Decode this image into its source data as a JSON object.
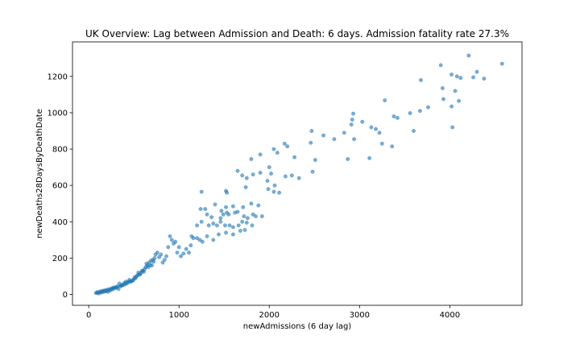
{
  "chart_data": {
    "type": "scatter",
    "title": "UK Overview:  Lag between Admission and Death: 6 days.  Admission fatality rate 27.3%",
    "xlabel": "newAdmissions (6 day lag)",
    "ylabel": "newDeaths28DaysByDeathDate",
    "xlim": [
      -180,
      4800
    ],
    "ylim": [
      -60,
      1390
    ],
    "xticks": [
      0,
      1000,
      2000,
      3000,
      4000
    ],
    "yticks": [
      0,
      200,
      400,
      600,
      800,
      1000,
      1200
    ],
    "grid": false,
    "marker_color": "#1f77b4",
    "points": [
      [
        4210,
        1315
      ],
      [
        4580,
        1270
      ],
      [
        3900,
        1262
      ],
      [
        3680,
        1180
      ],
      [
        4120,
        1192
      ],
      [
        4020,
        1210
      ],
      [
        4080,
        1200
      ],
      [
        4300,
        1225
      ],
      [
        4260,
        1195
      ],
      [
        4380,
        1188
      ],
      [
        3920,
        1135
      ],
      [
        4060,
        1120
      ],
      [
        3930,
        1075
      ],
      [
        4100,
        1065
      ],
      [
        3280,
        1068
      ],
      [
        4020,
        1035
      ],
      [
        3760,
        1030
      ],
      [
        3670,
        1010
      ],
      [
        3560,
        998
      ],
      [
        3380,
        980
      ],
      [
        3420,
        972
      ],
      [
        2930,
        995
      ],
      [
        2920,
        962
      ],
      [
        2910,
        935
      ],
      [
        3030,
        950
      ],
      [
        3180,
        910
      ],
      [
        3220,
        890
      ],
      [
        3130,
        920
      ],
      [
        4030,
        920
      ],
      [
        3600,
        900
      ],
      [
        2830,
        890
      ],
      [
        2470,
        900
      ],
      [
        2600,
        875
      ],
      [
        2940,
        855
      ],
      [
        3250,
        830
      ],
      [
        3360,
        815
      ],
      [
        2720,
        855
      ],
      [
        2460,
        835
      ],
      [
        2170,
        830
      ],
      [
        2050,
        800
      ],
      [
        2090,
        780
      ],
      [
        2200,
        815
      ],
      [
        1900,
        770
      ],
      [
        2280,
        755
      ],
      [
        2510,
        740
      ],
      [
        2870,
        745
      ],
      [
        3110,
        750
      ],
      [
        1800,
        745
      ],
      [
        1650,
        680
      ],
      [
        2000,
        700
      ],
      [
        1700,
        655
      ],
      [
        1820,
        660
      ],
      [
        1900,
        670
      ],
      [
        2020,
        665
      ],
      [
        2180,
        650
      ],
      [
        2250,
        655
      ],
      [
        2330,
        640
      ],
      [
        2480,
        675
      ],
      [
        1750,
        640
      ],
      [
        1740,
        590
      ],
      [
        1980,
        625
      ],
      [
        2060,
        600
      ],
      [
        1520,
        570
      ],
      [
        1530,
        560
      ],
      [
        1250,
        565
      ],
      [
        1400,
        495
      ],
      [
        1520,
        480
      ],
      [
        1600,
        485
      ],
      [
        1710,
        480
      ],
      [
        1800,
        500
      ],
      [
        1880,
        490
      ],
      [
        1990,
        580
      ],
      [
        2050,
        565
      ],
      [
        2110,
        560
      ],
      [
        1240,
        470
      ],
      [
        1290,
        470
      ],
      [
        1310,
        440
      ],
      [
        1360,
        425
      ],
      [
        1460,
        420
      ],
      [
        1490,
        440
      ],
      [
        1470,
        460
      ],
      [
        1530,
        450
      ],
      [
        1550,
        440
      ],
      [
        1620,
        450
      ],
      [
        1650,
        455
      ],
      [
        1720,
        430
      ],
      [
        1760,
        420
      ],
      [
        1820,
        440
      ],
      [
        1850,
        430
      ],
      [
        1920,
        430
      ],
      [
        1200,
        380
      ],
      [
        1250,
        400
      ],
      [
        1330,
        380
      ],
      [
        1380,
        390
      ],
      [
        1420,
        380
      ],
      [
        1460,
        400
      ],
      [
        1510,
        380
      ],
      [
        1560,
        380
      ],
      [
        1600,
        370
      ],
      [
        1660,
        380
      ],
      [
        1700,
        400
      ],
      [
        1750,
        395
      ],
      [
        1810,
        380
      ],
      [
        1440,
        330
      ],
      [
        1520,
        340
      ],
      [
        1600,
        330
      ],
      [
        1680,
        350
      ],
      [
        1730,
        355
      ],
      [
        1200,
        310
      ],
      [
        1230,
        300
      ],
      [
        1260,
        290
      ],
      [
        1310,
        320
      ],
      [
        1160,
        310
      ],
      [
        1130,
        270
      ],
      [
        1080,
        250
      ],
      [
        1050,
        225
      ],
      [
        1020,
        210
      ],
      [
        980,
        230
      ],
      [
        940,
        280
      ],
      [
        920,
        300
      ],
      [
        900,
        320
      ],
      [
        880,
        260
      ],
      [
        860,
        210
      ],
      [
        840,
        190
      ],
      [
        820,
        175
      ],
      [
        800,
        220
      ],
      [
        780,
        205
      ],
      [
        760,
        230
      ],
      [
        740,
        220
      ],
      [
        720,
        180
      ],
      [
        700,
        160
      ],
      [
        680,
        160
      ],
      [
        660,
        150
      ],
      [
        640,
        170
      ],
      [
        620,
        140
      ],
      [
        600,
        130
      ],
      [
        580,
        120
      ],
      [
        560,
        110
      ],
      [
        540,
        105
      ],
      [
        520,
        90
      ],
      [
        500,
        85
      ],
      [
        480,
        75
      ],
      [
        460,
        70
      ],
      [
        440,
        70
      ],
      [
        420,
        60
      ],
      [
        400,
        55
      ],
      [
        380,
        52
      ],
      [
        360,
        48
      ],
      [
        340,
        60
      ],
      [
        320,
        45
      ],
      [
        300,
        40
      ],
      [
        280,
        38
      ],
      [
        260,
        35
      ],
      [
        240,
        30
      ],
      [
        220,
        28
      ],
      [
        200,
        25
      ],
      [
        180,
        22
      ],
      [
        160,
        20
      ],
      [
        140,
        18
      ],
      [
        120,
        15
      ],
      [
        100,
        12
      ],
      [
        90,
        10
      ],
      [
        80,
        8
      ],
      [
        110,
        5
      ],
      [
        130,
        10
      ],
      [
        150,
        12
      ],
      [
        170,
        15
      ],
      [
        190,
        18
      ],
      [
        210,
        14
      ],
      [
        230,
        20
      ],
      [
        250,
        25
      ],
      [
        270,
        30
      ],
      [
        290,
        35
      ],
      [
        310,
        38
      ],
      [
        330,
        30
      ],
      [
        350,
        45
      ],
      [
        370,
        50
      ],
      [
        390,
        62
      ],
      [
        410,
        70
      ],
      [
        430,
        65
      ],
      [
        450,
        80
      ],
      [
        470,
        72
      ],
      [
        490,
        78
      ],
      [
        510,
        95
      ],
      [
        530,
        100
      ],
      [
        550,
        120
      ],
      [
        570,
        110
      ],
      [
        590,
        130
      ],
      [
        610,
        125
      ],
      [
        630,
        150
      ],
      [
        650,
        160
      ],
      [
        670,
        175
      ],
      [
        690,
        185
      ],
      [
        710,
        190
      ],
      [
        730,
        200
      ],
      [
        1000,
        260
      ],
      [
        960,
        290
      ],
      [
        1110,
        230
      ],
      [
        1140,
        320
      ],
      [
        1380,
        300
      ]
    ]
  }
}
